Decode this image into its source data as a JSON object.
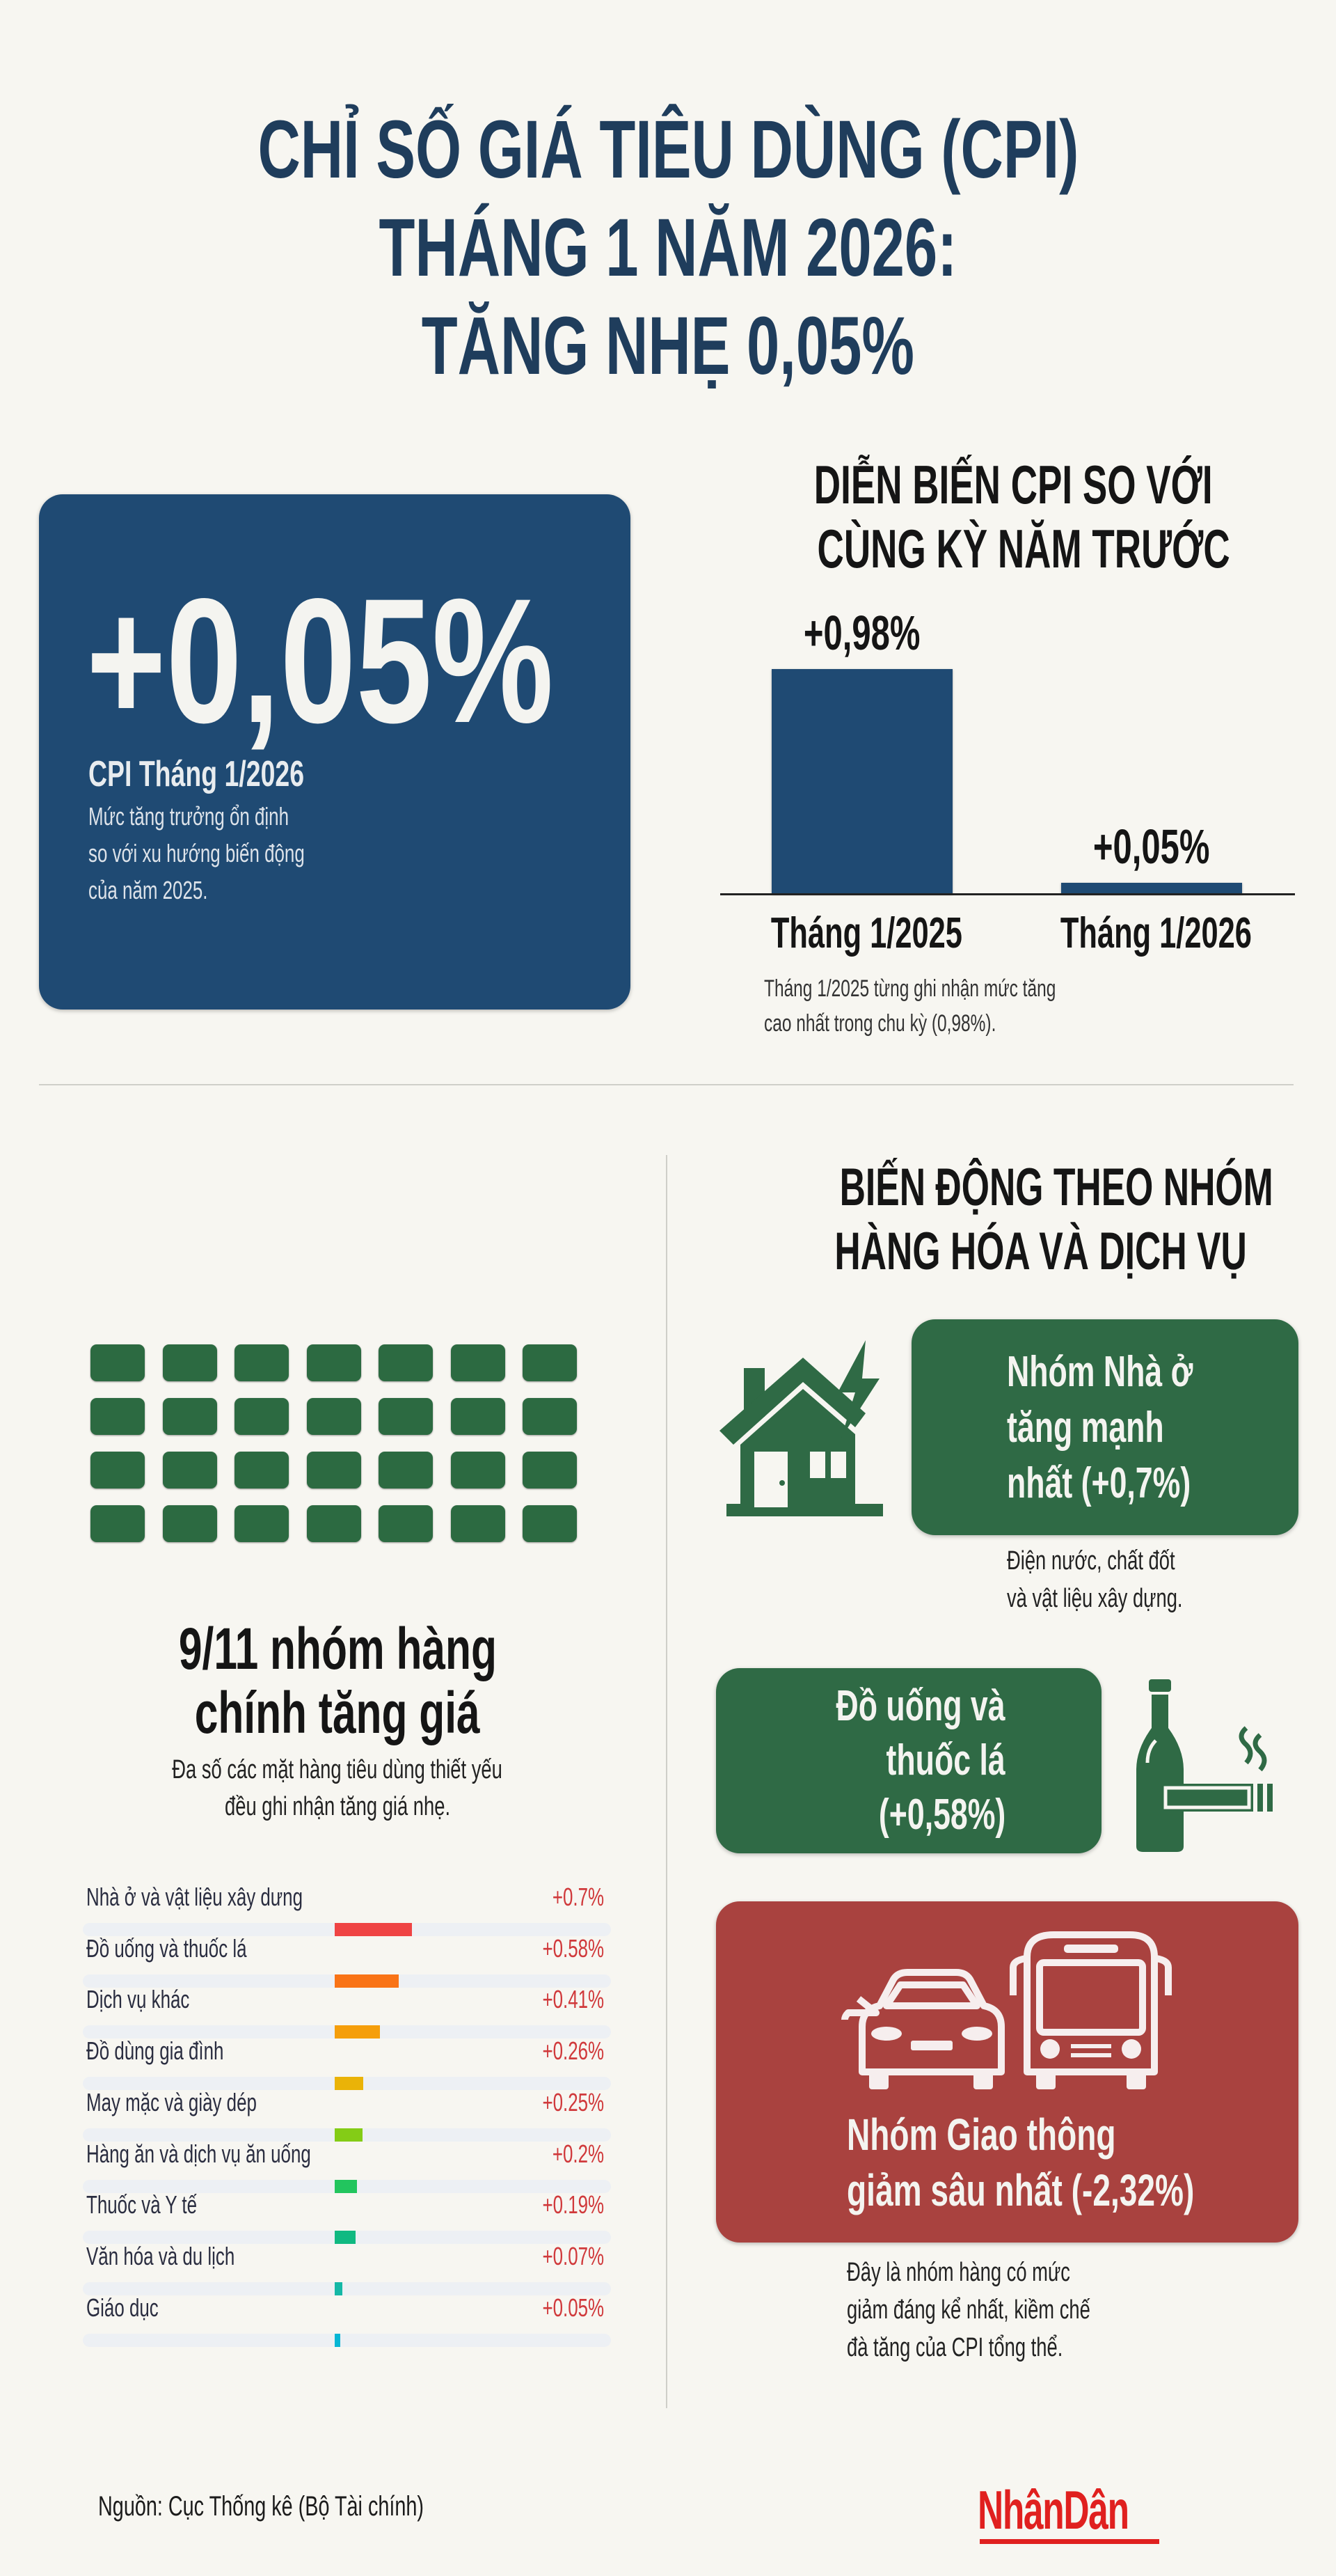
{
  "title": {
    "line1": "CHỈ SỐ GIÁ TIÊU DÙNG (CPI)",
    "line2": "THÁNG 1 NĂM 2026:",
    "line3": "TĂNG NHẸ 0,05%"
  },
  "headline_card": {
    "value": "+0,05%",
    "label": "CPI Tháng 1/2026",
    "desc": [
      "Mức tăng trưởng ổn định",
      "so với xu hướng biến động",
      "của năm 2025."
    ],
    "color": "#1f4a73"
  },
  "yoy": {
    "title": [
      "DIỄN BIẾN CPI SO VỚI",
      "CÙNG KỲ NĂM TRƯỚC"
    ],
    "note": [
      "Tháng 1/2025 từng ghi nhận mức tăng",
      "cao nhất trong chu kỳ (0,98%)."
    ]
  },
  "chart_data": [
    {
      "type": "bar",
      "categories": [
        "Tháng 1/2025",
        "Tháng 1/2026"
      ],
      "values": [
        0.98,
        0.05
      ],
      "data_labels": [
        "+0,98%",
        "+0,05%"
      ],
      "title": "DIỄN BIẾN CPI SO VỚI CÙNG KỲ NĂM TRƯỚC",
      "color": "#1f4a73",
      "grid": false
    },
    {
      "type": "bar",
      "orientation": "horizontal",
      "categories": [
        "Nhà ở và vật liệu xây dưng",
        "Đồ uống và thuốc lá",
        "Dịch vụ khác",
        "Đồ dùng gia đình",
        "May mặc và giày dép",
        "Hàng ăn và dịch vụ ăn uống",
        "Thuốc và Y tế",
        "Văn hóa và du lịch",
        "Giáo dục"
      ],
      "values": [
        0.7,
        0.58,
        0.41,
        0.26,
        0.25,
        0.2,
        0.19,
        0.07,
        0.05
      ],
      "data_labels": [
        "+0.7%",
        "+0.58%",
        "+0.41%",
        "+0.26%",
        "+0.25%",
        "+0.2%",
        "+0.19%",
        "+0.07%",
        "+0.05%"
      ],
      "colors": [
        "#ef4444",
        "#f97316",
        "#f59e0b",
        "#eab308",
        "#84cc16",
        "#22c55e",
        "#10b981",
        "#14b8a6",
        "#06b6d4"
      ],
      "value_color": "#d0393b",
      "grid": false
    }
  ],
  "groups_summary": {
    "title": [
      "9/11 nhóm hàng",
      "chính tăng giá"
    ],
    "desc": [
      "Đa số các mặt hàng tiêu dùng thiết yếu",
      "đều ghi nhận tăng giá nhẹ."
    ],
    "icon": "grid-blocks-icon",
    "color": "#2c6a41"
  },
  "by_group": {
    "title": [
      "BIẾN ĐỘNG THEO NHÓM",
      "HÀNG HÓA VÀ DỊCH VỤ"
    ],
    "housing": {
      "text": [
        "Nhóm Nhà ở",
        "tăng mạnh",
        "nhất (+0,7%)"
      ],
      "note": [
        "Điện nước, chất đốt",
        "và vật liệu xây dựng."
      ],
      "icon": "house-lightning-icon",
      "color": "#2f6a45"
    },
    "drinks": {
      "text": [
        "Đồ uống và",
        "thuốc lá",
        "(+0,58%)"
      ],
      "icon": "bottle-cigarette-icon",
      "color": "#2f6a45"
    },
    "transport": {
      "text": [
        "Nhóm Giao thông",
        "giảm sâu nhất (-2,32%)"
      ],
      "note": [
        "Đây là nhóm hàng có mức",
        "giảm đáng kể nhất, kiềm chế",
        "đà tăng của CPI tổng thể."
      ],
      "icon": "car-bus-icon",
      "color": "#a9423f"
    }
  },
  "footer": {
    "source": "Nguồn: Cục Thống kê (Bộ Tài chính)",
    "logo": "NhânDân",
    "logo_color": "#e0201f"
  }
}
